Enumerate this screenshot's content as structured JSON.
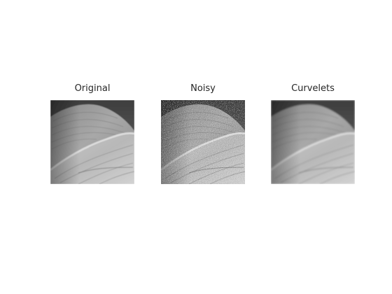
{
  "figure": {
    "panels": [
      {
        "title": "Original"
      },
      {
        "title": "Noisy"
      },
      {
        "title": "Curvelets"
      }
    ]
  }
}
